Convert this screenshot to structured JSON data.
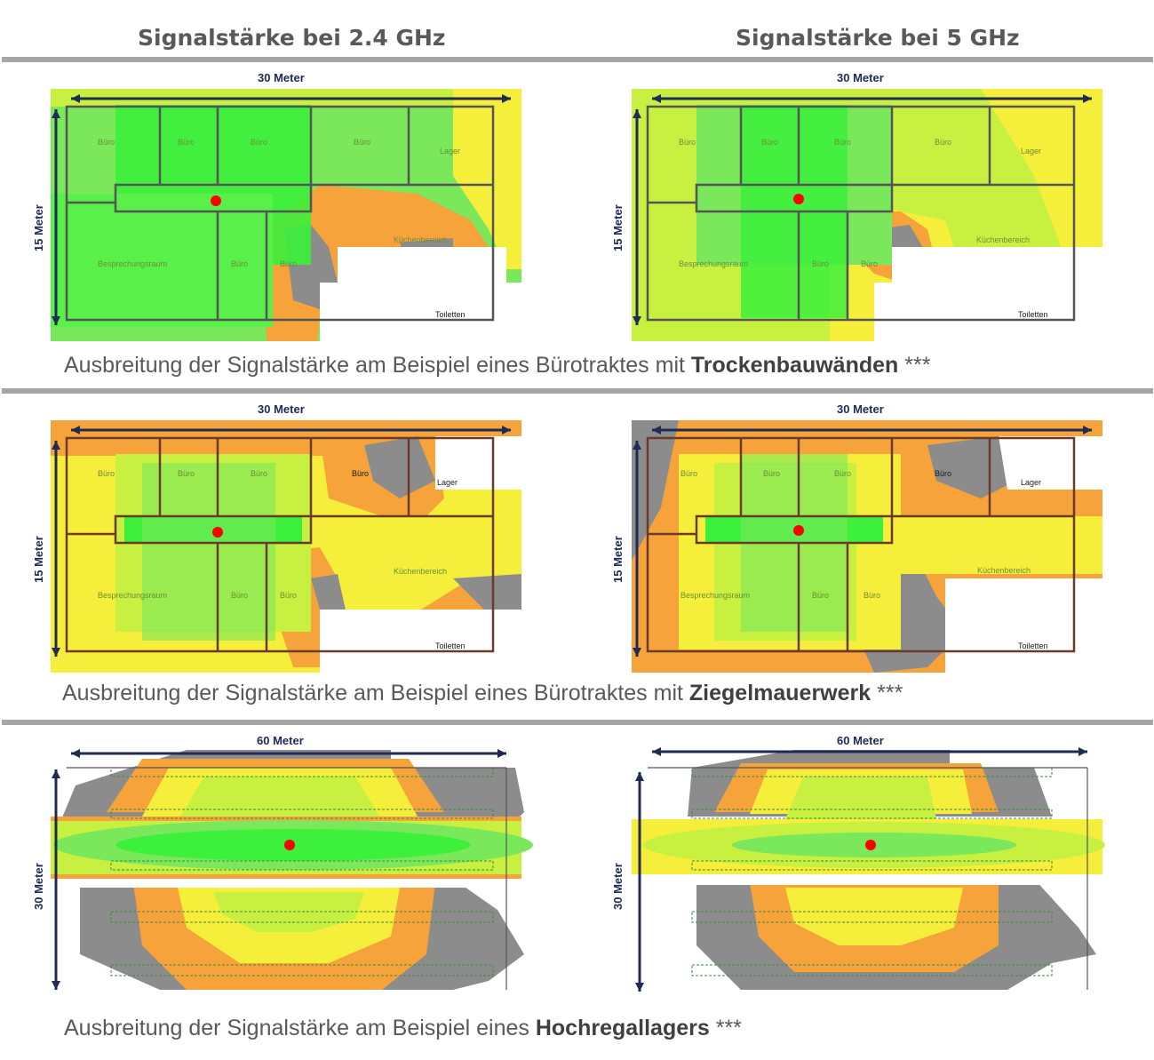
{
  "columns": {
    "left": "Signalstärke bei 2.4 GHz",
    "right": "Signalstärke bei 5 GHz"
  },
  "dimensions": {
    "m30": "30 Meter",
    "m15": "15 Meter",
    "m60": "60 Meter"
  },
  "rooms": {
    "buero": "Büro",
    "lager": "Lager",
    "besprechung": "Besprechungsraum",
    "kueche": "Küchenbereich",
    "toiletten": "Toiletten"
  },
  "captions": {
    "row1": {
      "prefix": "Ausbreitung der Signalstärke am Beispiel eines Bürotraktes mit ",
      "bold": "Trockenbauwänden",
      "suffix": " ***"
    },
    "row2": {
      "prefix": "Ausbreitung der Signalstärke am Beispiel eines Bürotraktes mit ",
      "bold": "Ziegelmauerwerk",
      "suffix": " ***"
    },
    "row3": {
      "prefix": "Ausbreitung der Signalstärke am Beispiel eines ",
      "bold": "Hochregallagers",
      "suffix": " ***"
    }
  },
  "colors": {
    "strong": "#3cf03c",
    "good": "#7ae85a",
    "medium": "#c8f040",
    "weak": "#f5ee3a",
    "poor": "#f5a33a",
    "none": "#8c8c8c",
    "access_point": "#ff0000",
    "separator": "#a6a6a6"
  }
}
